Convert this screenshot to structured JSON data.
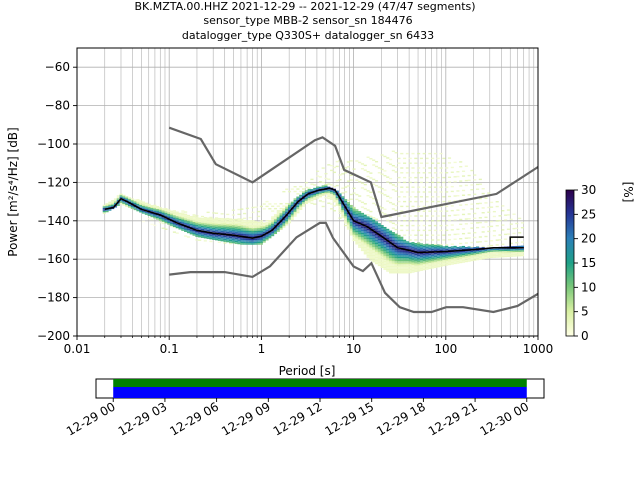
{
  "chart_data": [
    {
      "type": "heatmap",
      "title_lines": [
        "BK.MZTA.00.HHZ   2021-12-29 -- 2021-12-29  (47/47 segments)",
        "sensor_type MBB-2 sensor_sn 184476",
        "datalogger_type Q330S+ datalogger_sn 6433"
      ],
      "xlabel": "Period [s]",
      "ylabel": "Power [m²/s⁴/Hz] [dB]",
      "x_scale": "log",
      "xlim": [
        0.01,
        1000
      ],
      "ylim": [
        -200,
        -50
      ],
      "x_ticks": [
        {
          "value": 0.01,
          "label": "0.01"
        },
        {
          "value": 0.1,
          "label": "0.1"
        },
        {
          "value": 1,
          "label": "1"
        },
        {
          "value": 10,
          "label": "10"
        },
        {
          "value": 100,
          "label": "100"
        },
        {
          "value": 1000,
          "label": "1000"
        }
      ],
      "y_ticks": [
        -200,
        -180,
        -160,
        -140,
        -120,
        -100,
        -80,
        -60
      ],
      "grid": true,
      "colorbar": {
        "label": "[%]",
        "min": 0,
        "max": 30,
        "ticks": [
          0,
          5,
          10,
          15,
          20,
          25,
          30
        ],
        "colors": [
          "#ffffe5",
          "#d9f0a3",
          "#78c679",
          "#1fa187",
          "#2c7fb8",
          "#253494",
          "#2d004b"
        ]
      },
      "noise_models": {
        "nhnm": [
          [
            0.1,
            -91.5
          ],
          [
            0.22,
            -97.4
          ],
          [
            0.32,
            -110.5
          ],
          [
            0.8,
            -120
          ],
          [
            3.8,
            -98
          ],
          [
            4.6,
            -96.5
          ],
          [
            6.3,
            -101
          ],
          [
            7.9,
            -113.5
          ],
          [
            15.4,
            -120
          ],
          [
            20,
            -138
          ],
          [
            354.8,
            -126
          ],
          [
            1000,
            -112
          ]
        ],
        "nlnm": [
          [
            0.1,
            -168
          ],
          [
            0.17,
            -166.7
          ],
          [
            0.4,
            -166.7
          ],
          [
            0.8,
            -169.2
          ],
          [
            1.24,
            -163.7
          ],
          [
            2.4,
            -148.6
          ],
          [
            4.3,
            -141.1
          ],
          [
            5,
            -141.1
          ],
          [
            6,
            -149
          ],
          [
            10,
            -163.8
          ],
          [
            12.6,
            -166.2
          ],
          [
            15.6,
            -162.1
          ],
          [
            21.9,
            -177.5
          ],
          [
            31.6,
            -185
          ],
          [
            45,
            -187.5
          ],
          [
            70,
            -187.5
          ],
          [
            101,
            -185
          ],
          [
            154,
            -185
          ],
          [
            328,
            -187.5
          ],
          [
            600,
            -184.4
          ],
          [
            1000,
            -178
          ]
        ]
      },
      "mode_curve": [
        [
          0.02,
          -134
        ],
        [
          0.025,
          -133
        ],
        [
          0.03,
          -128.5
        ],
        [
          0.035,
          -130
        ],
        [
          0.05,
          -134
        ],
        [
          0.08,
          -137
        ],
        [
          0.12,
          -141
        ],
        [
          0.2,
          -145
        ],
        [
          0.3,
          -146.5
        ],
        [
          0.5,
          -147.5
        ],
        [
          0.8,
          -149
        ],
        [
          1.0,
          -148
        ],
        [
          1.3,
          -145
        ],
        [
          1.8,
          -138
        ],
        [
          2.5,
          -130
        ],
        [
          3.2,
          -126
        ],
        [
          4.2,
          -124
        ],
        [
          5.5,
          -123
        ],
        [
          6.3,
          -124
        ],
        [
          7.5,
          -130
        ],
        [
          10,
          -140
        ],
        [
          14,
          -143
        ],
        [
          20,
          -148
        ],
        [
          30,
          -154
        ],
        [
          50,
          -156.5
        ],
        [
          100,
          -156
        ],
        [
          200,
          -155
        ],
        [
          330,
          -154
        ],
        [
          500,
          -154
        ],
        [
          700,
          -154
        ]
      ],
      "mode_step": [
        [
          500,
          -154
        ],
        [
          500,
          -148.5
        ],
        [
          700,
          -148.5
        ]
      ],
      "data_band_upper": [
        [
          0.018,
          -133
        ],
        [
          0.03,
          -126
        ],
        [
          0.06,
          -131
        ],
        [
          0.2,
          -138
        ],
        [
          0.6,
          -139
        ],
        [
          1.1,
          -141
        ],
        [
          2,
          -131
        ],
        [
          3,
          -124
        ],
        [
          5,
          -121
        ],
        [
          6.5,
          -124
        ],
        [
          10,
          -133
        ],
        [
          20,
          -142
        ],
        [
          40,
          -151
        ],
        [
          100,
          -153
        ],
        [
          300,
          -154
        ],
        [
          700,
          -153
        ]
      ],
      "data_band_lower": [
        [
          0.018,
          -137
        ],
        [
          0.03,
          -131
        ],
        [
          0.06,
          -137
        ],
        [
          0.2,
          -148
        ],
        [
          0.6,
          -152
        ],
        [
          1.0,
          -152
        ],
        [
          2,
          -141
        ],
        [
          3,
          -131
        ],
        [
          5,
          -126
        ],
        [
          6.5,
          -131
        ],
        [
          10,
          -150
        ],
        [
          15,
          -160
        ],
        [
          25,
          -167
        ],
        [
          40,
          -167
        ],
        [
          100,
          -163
        ],
        [
          300,
          -159
        ],
        [
          700,
          -158
        ]
      ],
      "scatter_band_upper": [
        [
          0.05,
          -131
        ],
        [
          0.2,
          -136
        ],
        [
          0.5,
          -134
        ],
        [
          1,
          -130
        ],
        [
          3,
          -118
        ],
        [
          6,
          -108
        ],
        [
          10,
          -108
        ],
        [
          30,
          -103
        ],
        [
          100,
          -105
        ],
        [
          200,
          -113
        ],
        [
          300,
          -126
        ],
        [
          700,
          -140
        ]
      ],
      "scatter_band_lower": [
        [
          0.05,
          -140
        ],
        [
          0.2,
          -150
        ],
        [
          0.5,
          -152
        ],
        [
          1,
          -150
        ],
        [
          3,
          -130
        ],
        [
          6,
          -134
        ],
        [
          10,
          -148
        ],
        [
          30,
          -160
        ],
        [
          100,
          -160
        ],
        [
          300,
          -158
        ],
        [
          700,
          -156
        ]
      ]
    },
    {
      "type": "timeline",
      "x_ticks": [
        "12-29 00",
        "12-29 03",
        "12-29 06",
        "12-29 09",
        "12-29 12",
        "12-29 15",
        "12-29 18",
        "12-29 21",
        "12-30 00"
      ],
      "x_start_hour": -1,
      "x_end_hour": 25,
      "segments_hours": [
        [
          0,
          24
        ]
      ],
      "colors": {
        "coverage": "#0000ff",
        "processed": "#008000"
      }
    }
  ]
}
